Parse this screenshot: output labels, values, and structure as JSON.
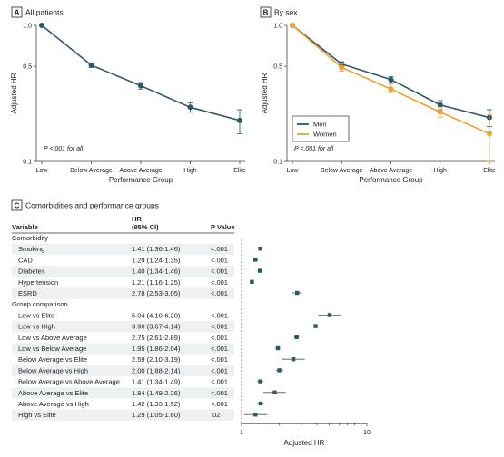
{
  "panel_a": {
    "letter": "A",
    "title": "All patients"
  },
  "panel_b": {
    "letter": "B",
    "title": "By sex"
  },
  "panel_c": {
    "letter": "C",
    "title": "Comorbidities and performance groups"
  },
  "colors": {
    "men": "#2b5866",
    "women": "#f0a030",
    "all": "#2b5866",
    "axis": "#444444",
    "bands": "#eef1f2"
  },
  "chart_data": [
    {
      "id": "A",
      "type": "line",
      "title": "All patients",
      "xlabel": "Performance Group",
      "ylabel": "Adjusted HR",
      "y_scale": "log",
      "ylim": [
        0.1,
        1.0
      ],
      "yticks": [
        "1.0",
        "0.5",
        "0.1"
      ],
      "categories": [
        "Low",
        "Below Average",
        "Above Average",
        "High",
        "Elite"
      ],
      "series": [
        {
          "values": [
            1.0,
            0.51,
            0.36,
            0.25,
            0.2
          ],
          "ci_low": [
            1.0,
            0.49,
            0.34,
            0.23,
            0.16
          ],
          "ci_high": [
            1.0,
            0.53,
            0.38,
            0.27,
            0.24
          ]
        }
      ],
      "annotation": "P <.001 for all"
    },
    {
      "id": "B",
      "type": "line",
      "title": "By sex",
      "xlabel": "Performance Group",
      "ylabel": "Adjusted HR",
      "y_scale": "log",
      "ylim": [
        0.1,
        1.0
      ],
      "yticks": [
        "1.0",
        "0.5",
        "0.1"
      ],
      "categories": [
        "Low",
        "Below Average",
        "Above Average",
        "High",
        "Elite"
      ],
      "legend_position": "middle-left",
      "series": [
        {
          "name": "Men",
          "values": [
            1.0,
            0.52,
            0.4,
            0.26,
            0.21
          ],
          "ci_low": [
            1.0,
            0.5,
            0.38,
            0.24,
            0.18
          ],
          "ci_high": [
            1.0,
            0.54,
            0.42,
            0.28,
            0.24
          ]
        },
        {
          "name": "Women",
          "values": [
            1.0,
            0.49,
            0.34,
            0.23,
            0.16
          ],
          "ci_low": [
            1.0,
            0.46,
            0.32,
            0.21,
            0.1
          ],
          "ci_high": [
            1.0,
            0.52,
            0.37,
            0.25,
            0.22
          ]
        }
      ],
      "annotation": "P <.001 for all"
    },
    {
      "id": "C",
      "type": "forest",
      "title": "Comorbidities and performance groups",
      "columns": {
        "variable": "Variable",
        "hr_line1": "HR",
        "hr_line2": "(95% CI)",
        "p": "P Value"
      },
      "xlabel": "Adjusted HR",
      "x_scale": "log",
      "xlim": [
        1,
        10
      ],
      "xticks": [
        "1",
        "10"
      ],
      "groups": [
        {
          "label": "Comorbidity",
          "rows": [
            {
              "variable": "Smoking",
              "hr_text": "1.41 (1.36-1.46)",
              "p": "<.001",
              "hr": 1.41,
              "lo": 1.36,
              "hi": 1.46
            },
            {
              "variable": "CAD",
              "hr_text": "1.29 (1.24-1.35)",
              "p": "<.001",
              "hr": 1.29,
              "lo": 1.24,
              "hi": 1.35
            },
            {
              "variable": "Diabetes",
              "hr_text": "1.40 (1.34-1.46)",
              "p": "<.001",
              "hr": 1.4,
              "lo": 1.34,
              "hi": 1.46
            },
            {
              "variable": "Hypertension",
              "hr_text": "1.21 (1.16-1.25)",
              "p": "<.001",
              "hr": 1.21,
              "lo": 1.16,
              "hi": 1.25
            },
            {
              "variable": "ESRD",
              "hr_text": "2.78 (2.53-3.05)",
              "p": "<.001",
              "hr": 2.78,
              "lo": 2.53,
              "hi": 3.05
            }
          ]
        },
        {
          "label": "Group comparison",
          "rows": [
            {
              "variable": "Low vs Elite",
              "hr_text": "5.04 (4.10-6.20)",
              "p": "<.001",
              "hr": 5.04,
              "lo": 4.1,
              "hi": 6.2
            },
            {
              "variable": "Low vs High",
              "hr_text": "3.90 (3.67-4.14)",
              "p": "<.001",
              "hr": 3.9,
              "lo": 3.67,
              "hi": 4.14
            },
            {
              "variable": "Low vs Above Average",
              "hr_text": "2.75 (2.61-2.89)",
              "p": "<.001",
              "hr": 2.75,
              "lo": 2.61,
              "hi": 2.89
            },
            {
              "variable": "Low vs Below Average",
              "hr_text": "1.95 (1.86-2.04)",
              "p": "<.001",
              "hr": 1.95,
              "lo": 1.86,
              "hi": 2.04
            },
            {
              "variable": "Below Average vs Elite",
              "hr_text": "2.59 (2.10-3.19)",
              "p": "<.001",
              "hr": 2.59,
              "lo": 2.1,
              "hi": 3.19
            },
            {
              "variable": "Below Average vs High",
              "hr_text": "2.00 (1.88-2.14)",
              "p": "<.001",
              "hr": 2.0,
              "lo": 1.88,
              "hi": 2.14
            },
            {
              "variable": "Below Average vs Above Average",
              "hr_text": "1.41 (1.34-1.49)",
              "p": "<.001",
              "hr": 1.41,
              "lo": 1.34,
              "hi": 1.49
            },
            {
              "variable": "Above Average vs Elite",
              "hr_text": "1.84 (1.49-2.26)",
              "p": "<.001",
              "hr": 1.84,
              "lo": 1.49,
              "hi": 2.26
            },
            {
              "variable": "Above Average vs High",
              "hr_text": "1.42 (1.33-1.52)",
              "p": "<.001",
              "hr": 1.42,
              "lo": 1.33,
              "hi": 1.52
            },
            {
              "variable": "High vs Elite",
              "hr_text": "1.29 (1.05-1.60)",
              "p": ".02",
              "hr": 1.29,
              "lo": 1.05,
              "hi": 1.6
            }
          ]
        }
      ]
    }
  ]
}
